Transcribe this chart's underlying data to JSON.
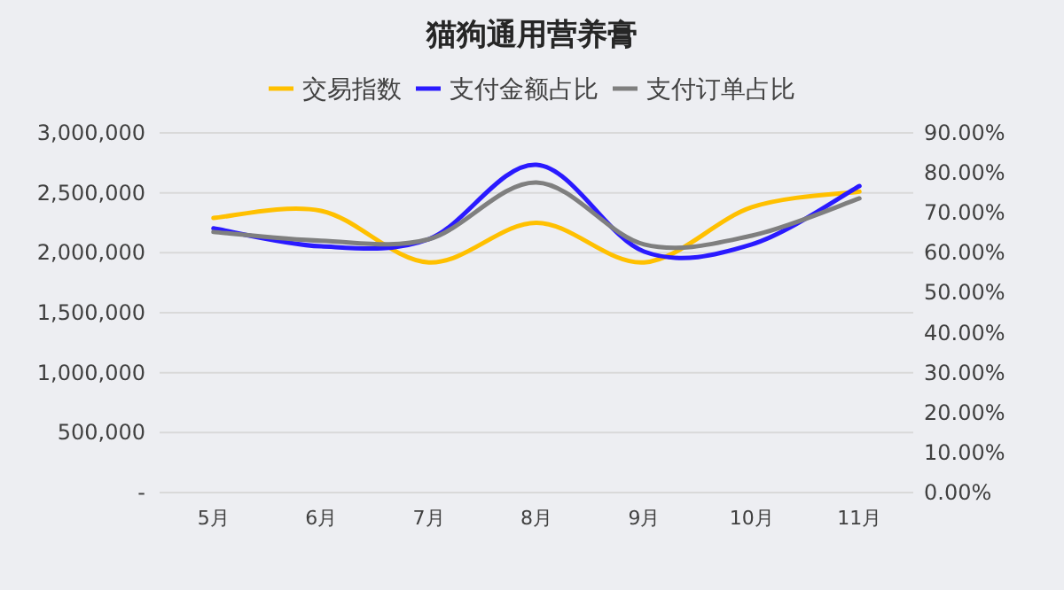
{
  "chart_data": {
    "type": "line",
    "title": "猫狗通用营养膏",
    "categories": [
      "5月",
      "6月",
      "7月",
      "8月",
      "9月",
      "10月",
      "11月"
    ],
    "series": [
      {
        "name": "交易指数",
        "color": "#ffc000",
        "values": [
          2290000,
          2350000,
          1920000,
          2250000,
          1920000,
          2380000,
          2510000
        ]
      },
      {
        "name": "支付金额占比",
        "color": "#2a1aff",
        "axis": "y2",
        "values": [
          66.1,
          61.6,
          63.4,
          82.0,
          60.3,
          62.1,
          76.7
        ]
      },
      {
        "name": "支付订单占比",
        "color": "#7f7f7f",
        "axis": "y2",
        "values": [
          65.2,
          63.0,
          63.4,
          77.6,
          62.1,
          64.3,
          73.6
        ]
      }
    ],
    "ylim": [
      0,
      3000000
    ],
    "yticks": [
      {
        "value": 0,
        "label": "-"
      },
      {
        "value": 500000,
        "label": "500,000"
      },
      {
        "value": 1000000,
        "label": "1,000,000"
      },
      {
        "value": 1500000,
        "label": "1,500,000"
      },
      {
        "value": 2000000,
        "label": "2,000,000"
      },
      {
        "value": 2500000,
        "label": "2,500,000"
      },
      {
        "value": 3000000,
        "label": "3,000,000"
      }
    ],
    "y2lim": [
      0,
      90
    ],
    "y2ticks": [
      {
        "value": 0,
        "label": "0.00%"
      },
      {
        "value": 10,
        "label": "10.00%"
      },
      {
        "value": 20,
        "label": "20.00%"
      },
      {
        "value": 30,
        "label": "30.00%"
      },
      {
        "value": 40,
        "label": "40.00%"
      },
      {
        "value": 50,
        "label": "50.00%"
      },
      {
        "value": 60,
        "label": "60.00%"
      },
      {
        "value": 70,
        "label": "70.00%"
      },
      {
        "value": 80,
        "label": "80.00%"
      },
      {
        "value": 90,
        "label": "90.00%"
      }
    ],
    "grid": "y",
    "legend": "top",
    "marker": "none",
    "line_style": "solid"
  }
}
